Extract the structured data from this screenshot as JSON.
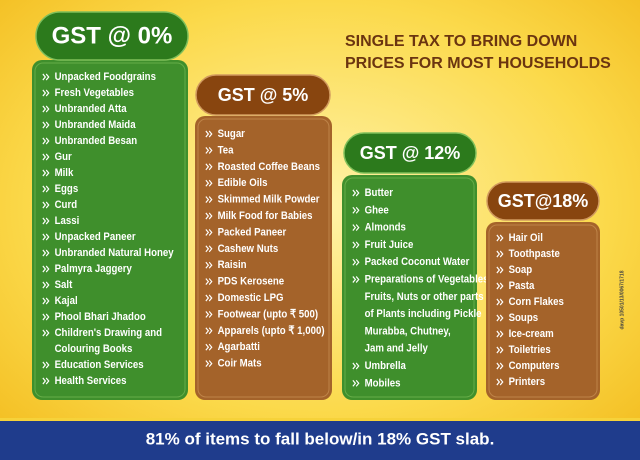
{
  "title": [
    "SINGLE TAX TO BRING DOWN",
    "PRICES FOR MOST HOUSEHOLDS"
  ],
  "slabs": [
    {
      "label": "GST @ 0%",
      "items": [
        "Unpacked Foodgrains",
        "Fresh Vegetables",
        "Unbranded Atta",
        "Unbranded Maida",
        "Unbranded Besan",
        "Gur",
        "Milk",
        "Eggs",
        "Curd",
        "Lassi",
        "Unpacked Paneer",
        "Unbranded Natural Honey",
        "Palmyra Jaggery",
        "Salt",
        "Kajal",
        "Phool Bhari Jhadoo",
        [
          "Children's Drawing and",
          "Colouring Books"
        ],
        "Education Services",
        "Health Services"
      ]
    },
    {
      "label": "GST @ 5%",
      "items": [
        "Sugar",
        "Tea",
        "Roasted Coffee Beans",
        "Edible Oils",
        "Skimmed Milk Powder",
        "Milk Food for Babies",
        "Packed Paneer",
        "Cashew Nuts",
        "Raisin",
        "PDS Kerosene",
        "Domestic LPG",
        "Footwear (upto ₹ 500)",
        "Apparels (upto ₹ 1,000)",
        "Agarbatti",
        "Coir Mats"
      ]
    },
    {
      "label": "GST @ 12%",
      "items": [
        "Butter",
        "Ghee",
        "Almonds",
        "Fruit Juice",
        "Packed Coconut Water",
        [
          "Preparations of Vegetables,",
          "Fruits, Nuts or other parts",
          "of Plants including Pickle",
          "Murabba, Chutney,",
          "Jam and Jelly"
        ],
        "Umbrella",
        "Mobiles"
      ]
    },
    {
      "label": "GST@18%",
      "items": [
        "Hair Oil",
        "Toothpaste",
        "Soap",
        "Pasta",
        "Corn Flakes",
        "Soups",
        "Ice-cream",
        "Toiletries",
        "Computers",
        "Printers"
      ]
    }
  ],
  "footer": "81% of items to fall below/in 18% GST slab.",
  "code": "davp 10501/13/0067/1718"
}
